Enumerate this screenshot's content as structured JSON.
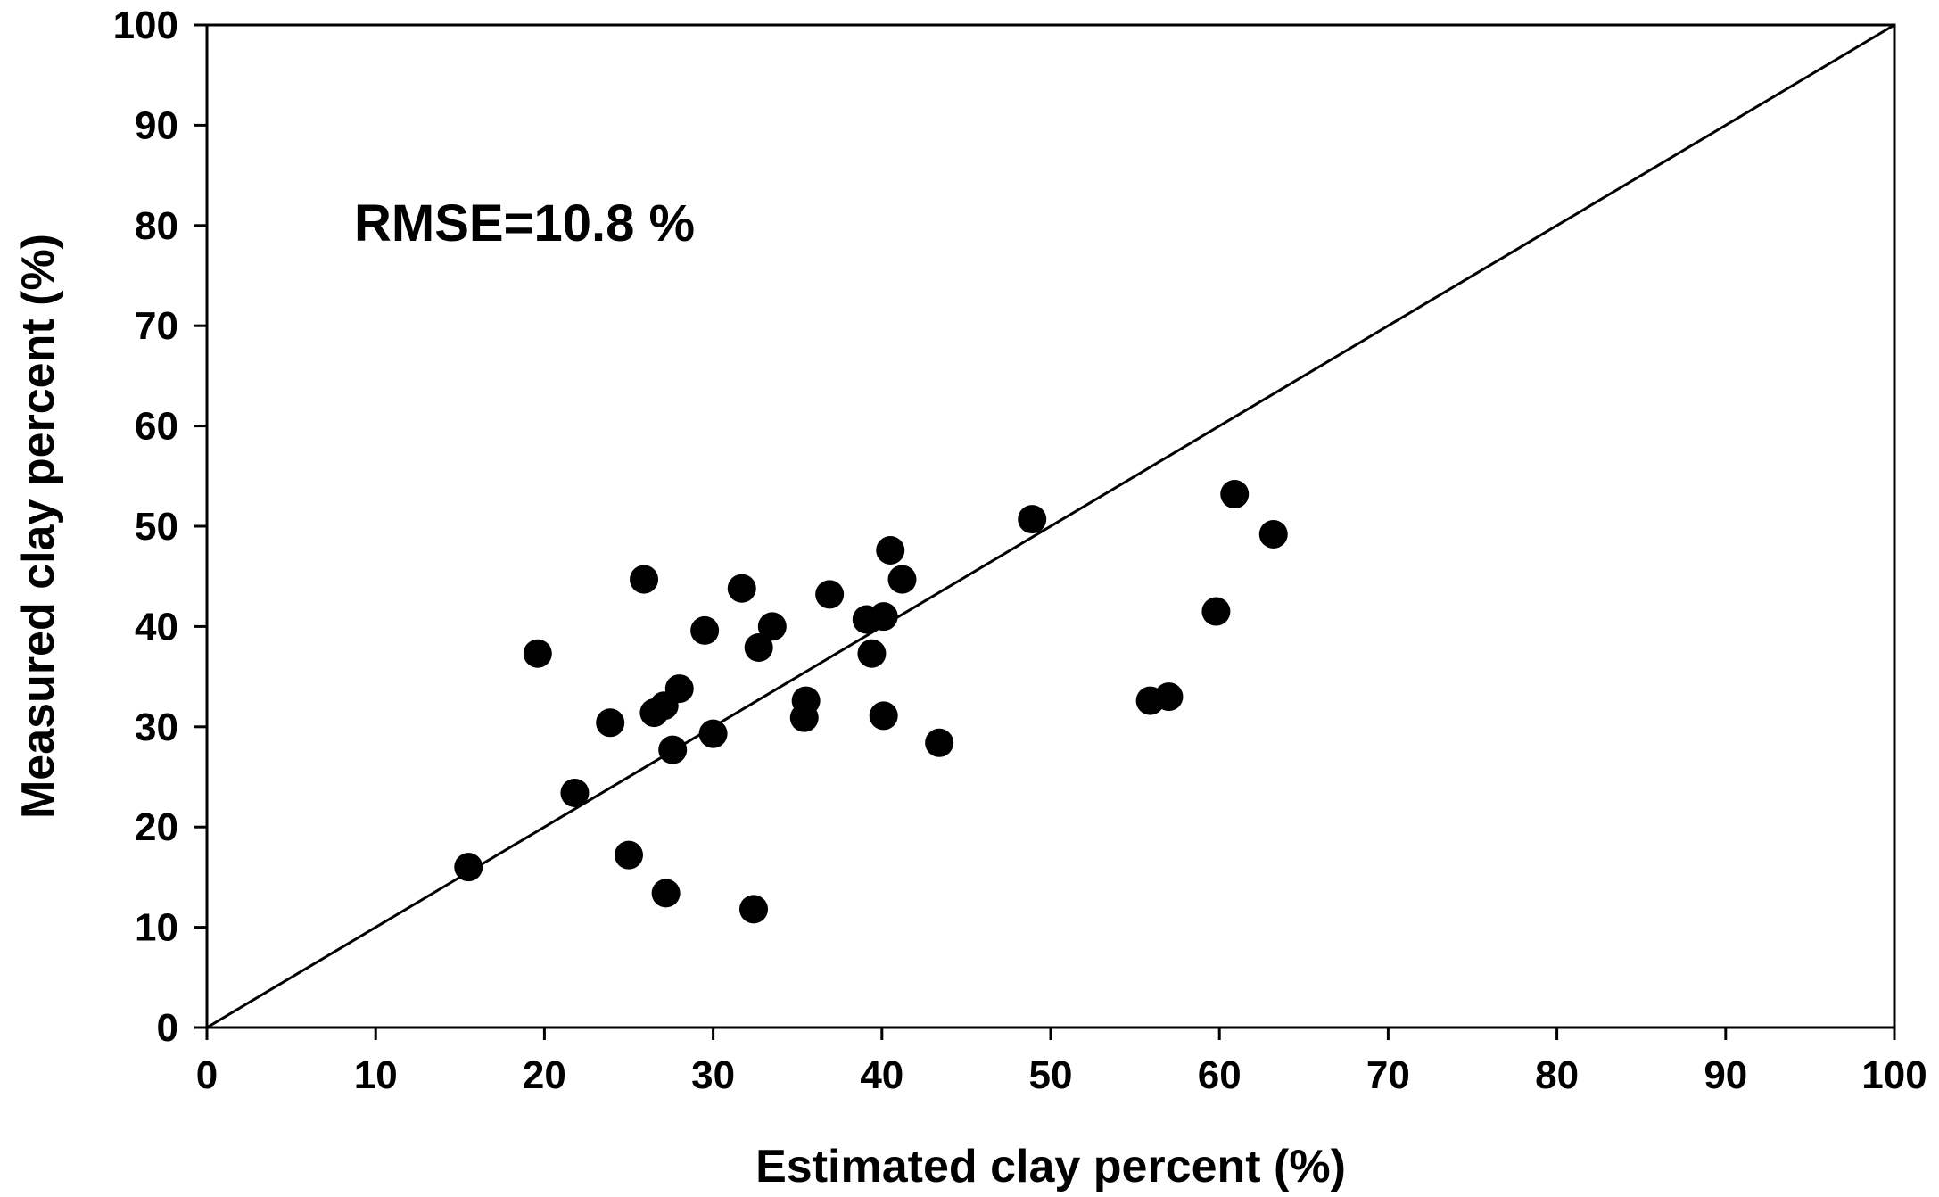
{
  "chart_data": {
    "type": "scatter",
    "title": "",
    "xlabel": "Estimated clay percent (%)",
    "ylabel": "Measured clay percent (%)",
    "xlim": [
      0,
      100
    ],
    "ylim": [
      0,
      100
    ],
    "xticks": [
      "0",
      "10",
      "20",
      "30",
      "40",
      "50",
      "60",
      "70",
      "80",
      "90",
      "100"
    ],
    "yticks": [
      "0",
      "10",
      "20",
      "30",
      "40",
      "50",
      "60",
      "70",
      "80",
      "90",
      "100"
    ],
    "grid": false,
    "annotation": "RMSE=10.8 %",
    "reference_line": {
      "name": "1:1 line",
      "from": [
        0,
        0
      ],
      "to": [
        100,
        100
      ]
    },
    "series": [
      {
        "name": "samples",
        "points": [
          [
            15.5,
            16.0
          ],
          [
            19.6,
            37.3
          ],
          [
            21.8,
            23.4
          ],
          [
            23.9,
            30.4
          ],
          [
            25.0,
            17.2
          ],
          [
            25.9,
            44.7
          ],
          [
            26.5,
            31.4
          ],
          [
            27.1,
            32.1
          ],
          [
            27.2,
            13.4
          ],
          [
            27.6,
            27.7
          ],
          [
            28.0,
            33.8
          ],
          [
            29.5,
            39.6
          ],
          [
            30.0,
            29.3
          ],
          [
            31.7,
            43.8
          ],
          [
            32.4,
            11.8
          ],
          [
            32.7,
            37.9
          ],
          [
            33.5,
            40.0
          ],
          [
            35.5,
            32.6
          ],
          [
            35.4,
            30.9
          ],
          [
            36.9,
            43.2
          ],
          [
            39.1,
            40.7
          ],
          [
            39.4,
            37.3
          ],
          [
            40.1,
            41.0
          ],
          [
            40.1,
            31.1
          ],
          [
            40.5,
            47.6
          ],
          [
            41.2,
            44.7
          ],
          [
            43.4,
            28.4
          ],
          [
            48.9,
            50.7
          ],
          [
            55.9,
            32.6
          ],
          [
            57.0,
            33.0
          ],
          [
            59.8,
            41.5
          ],
          [
            60.9,
            53.2
          ],
          [
            63.2,
            49.2
          ]
        ]
      }
    ]
  }
}
